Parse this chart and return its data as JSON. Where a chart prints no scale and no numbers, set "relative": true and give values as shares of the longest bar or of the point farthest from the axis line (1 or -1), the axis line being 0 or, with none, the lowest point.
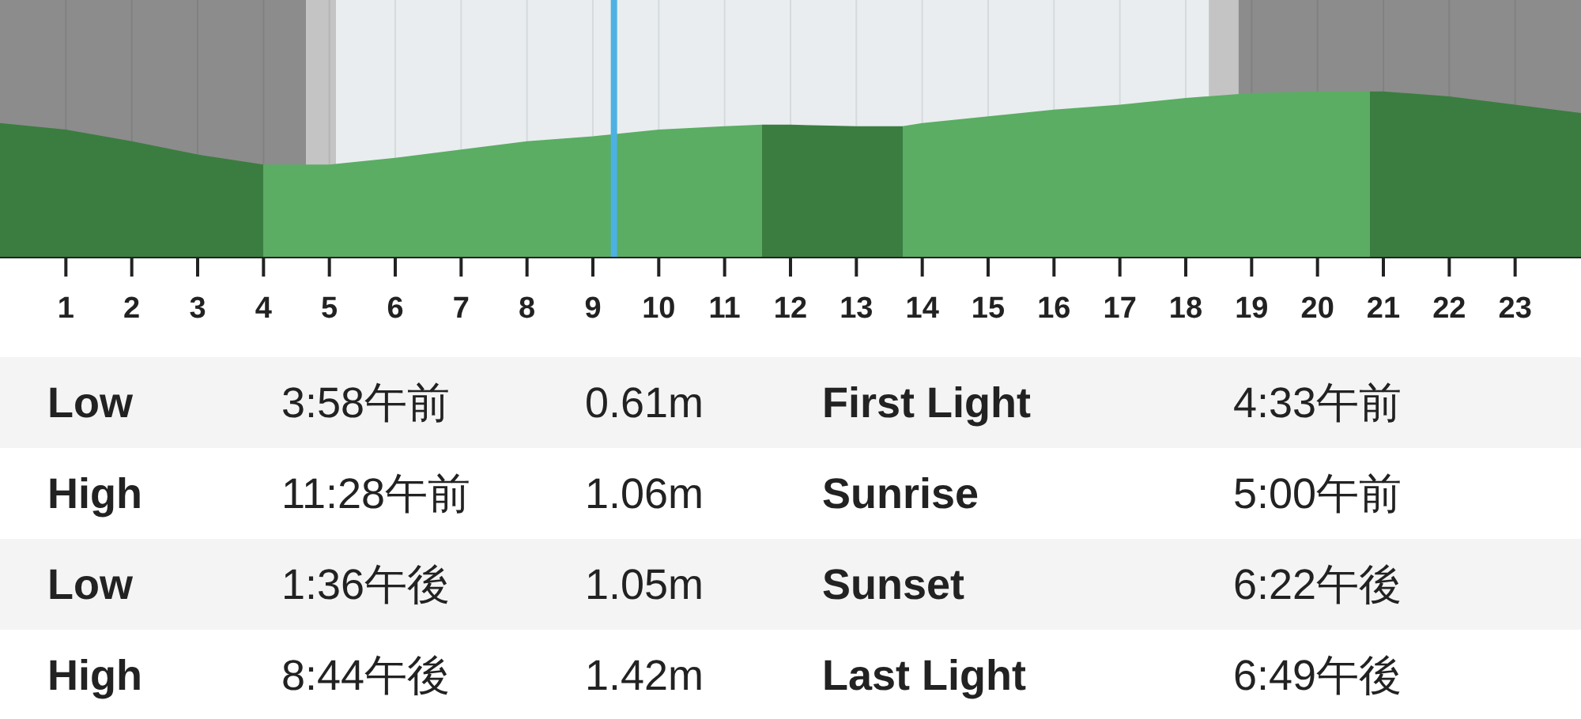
{
  "chart_data": {
    "type": "area",
    "relative": true,
    "xlim": [
      0,
      24
    ],
    "xticks": [
      1,
      2,
      3,
      4,
      5,
      6,
      7,
      8,
      9,
      10,
      11,
      12,
      13,
      14,
      15,
      16,
      17,
      18,
      19,
      20,
      21,
      22,
      23
    ],
    "grid": "x",
    "series": [
      {
        "x": [
          0,
          1,
          2,
          3,
          4,
          5,
          6,
          7,
          8,
          9,
          10,
          11,
          11.57,
          12,
          13,
          13.7,
          14,
          15,
          16,
          17,
          18,
          19,
          20,
          20.8,
          21,
          22,
          23,
          24
        ],
        "values": [
          0.81,
          0.77,
          0.7,
          0.62,
          0.56,
          0.56,
          0.6,
          0.65,
          0.7,
          0.73,
          0.77,
          0.79,
          0.8,
          0.8,
          0.79,
          0.79,
          0.81,
          0.85,
          0.89,
          0.92,
          0.96,
          0.99,
          1.0,
          1.0,
          1.0,
          0.97,
          0.92,
          0.87
        ],
        "colors": [
          "#3b7d40",
          "#3b7d40",
          "#3b7d40",
          "#3b7d40",
          "#5aad63",
          "#5aad63",
          "#5aad63",
          "#5aad63",
          "#5aad63",
          "#5aad63",
          "#5aad63",
          "#5aad63",
          "#3b7d40",
          "#3b7d40",
          "#3b7d40",
          "#5aad63",
          "#5aad63",
          "#5aad63",
          "#5aad63",
          "#5aad63",
          "#5aad63",
          "#5aad63",
          "#5aad63",
          "#3b7d40",
          "#3b7d40",
          "#3b7d40",
          "#3b7d40",
          "#3b7d40"
        ]
      }
    ],
    "bands": [
      {
        "axis": "x",
        "from": 0,
        "to": 4.65,
        "color": "#8c8c8c"
      },
      {
        "axis": "x",
        "from": 4.65,
        "to": 5.1,
        "color": "#c4c4c4"
      },
      {
        "axis": "x",
        "from": 5.1,
        "to": 18.35,
        "color": "#e9edef"
      },
      {
        "axis": "x",
        "from": 18.35,
        "to": 18.8,
        "color": "#c4c4c4"
      },
      {
        "axis": "x",
        "from": 18.8,
        "to": 24,
        "color": "#8c8c8c"
      }
    ],
    "ref_lines": [
      {
        "axis": "x",
        "value": 9.32,
        "color": "#4eb1e3"
      }
    ],
    "annotations": [
      "Low",
      "3:58午前",
      "0.61m",
      "First Light",
      "4:33午前",
      "High",
      "11:28午前",
      "1.06m",
      "Sunrise",
      "5:00午前",
      "Low",
      "1:36午後",
      "1.05m",
      "Sunset",
      "6:22午後",
      "High",
      "8:44午後",
      "1.42m",
      "Last Light",
      "6:49午後"
    ]
  }
}
